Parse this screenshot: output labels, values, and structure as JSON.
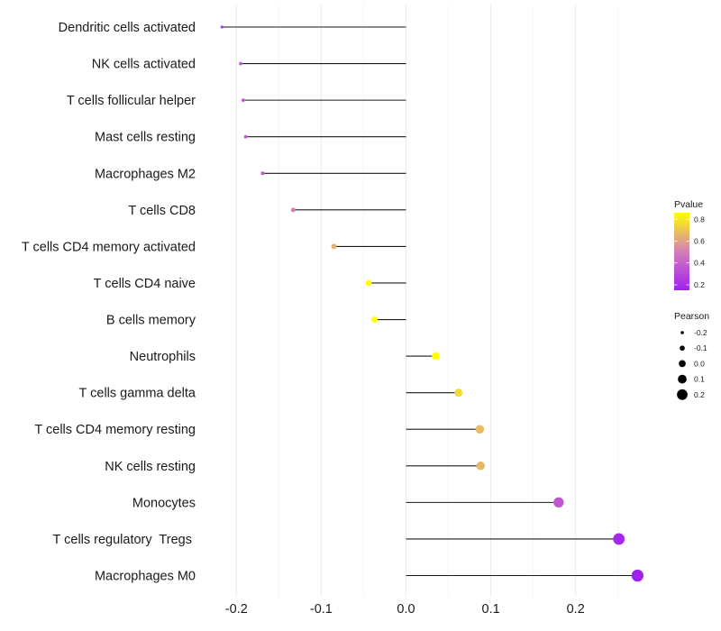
{
  "chart_data": {
    "type": "scatter",
    "subtype": "lollipop",
    "title": "",
    "xlabel": "",
    "ylabel": "",
    "xlim": [
      -0.235,
      0.285
    ],
    "x_ticks": [
      -0.2,
      -0.1,
      0.0,
      0.1,
      0.2
    ],
    "x_tick_labels": [
      "-0.2",
      "-0.1",
      "0.0",
      "0.1",
      "0.2"
    ],
    "grid": true,
    "stem_from": 0,
    "categories": [
      "Dendritic cells activated",
      "NK cells activated",
      "T cells follicular helper",
      "Mast cells resting",
      "Macrophages M2",
      "T cells CD8",
      "T cells CD4 memory activated",
      "T cells CD4 naive",
      "B cells memory",
      "Neutrophils",
      "T cells gamma delta",
      "T cells CD4 memory resting",
      "NK cells resting",
      "Monocytes",
      "T cells regulatory  Tregs ",
      "Macrophages M0"
    ],
    "series": [
      {
        "name": "Pearson",
        "values": [
          -0.217,
          -0.195,
          -0.192,
          -0.189,
          -0.169,
          -0.133,
          -0.085,
          -0.044,
          -0.037,
          0.035,
          0.062,
          0.087,
          0.088,
          0.18,
          0.251,
          0.273
        ]
      },
      {
        "name": "Pvalue",
        "values": [
          0.25,
          0.35,
          0.36,
          0.37,
          0.38,
          0.5,
          0.65,
          0.86,
          0.86,
          0.86,
          0.76,
          0.67,
          0.67,
          0.36,
          0.18,
          0.15
        ]
      }
    ],
    "legend": {
      "placement": "right",
      "color": {
        "title": "Pvalue",
        "ticks": [
          0.8,
          0.6,
          0.4,
          0.2
        ],
        "tick_labels": [
          "0.8",
          "0.6",
          "0.4",
          "0.2"
        ],
        "range": [
          0.15,
          0.86
        ],
        "low_color": "#A020F0",
        "mid_color": "#D47FB8",
        "high_color": "#FFFF00"
      },
      "size": {
        "title": "Pearson",
        "values": [
          -0.2,
          -0.1,
          0.0,
          0.1,
          0.2
        ],
        "labels": [
          "-0.2",
          "-0.1",
          "0.0",
          "0.1",
          "0.2"
        ]
      }
    }
  }
}
